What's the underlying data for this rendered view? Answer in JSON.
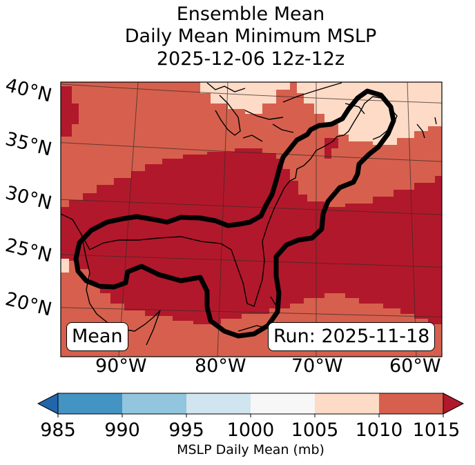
{
  "title": {
    "line1": "Ensemble Mean",
    "line2": "Daily Mean Minimum MSLP",
    "line3": "2025-12-06 12z-12z"
  },
  "map": {
    "lat_labels": [
      "40°N",
      "35°N",
      "30°N",
      "25°N",
      "20°N"
    ],
    "lon_labels": [
      "90°W",
      "80°W",
      "70°W",
      "60°W"
    ],
    "mean_label": "Mean",
    "run_label": "Run: 2025-11-18",
    "fill_levels": {
      "background": "1010-1015",
      "low_region": "1015+",
      "high_pockets": "1005-1010"
    }
  },
  "colorbar": {
    "ticks": [
      "985",
      "990",
      "995",
      "1000",
      "1005",
      "1010",
      "1015"
    ],
    "label": "MSLP Daily Mean (mb)",
    "colors": {
      "under": "#2166ac",
      "985-990": "#4393c3",
      "990-995": "#92c5de",
      "995-1000": "#d1e5f0",
      "1000-1005": "#f7f7f7",
      "1005-1010": "#fddbc7",
      "1010-1015": "#d6604d",
      "over": "#b2182b"
    }
  }
}
